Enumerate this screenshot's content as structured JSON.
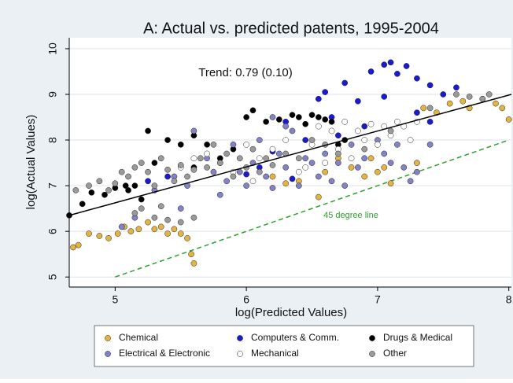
{
  "chart_data": {
    "type": "scatter",
    "title": "A: Actual vs. predicted patents, 1995-2004",
    "xlabel": "log(Predicted Values)",
    "ylabel": "log(Actual Values)",
    "xlim": [
      4.65,
      8.02
    ],
    "ylim": [
      4.78,
      10.24
    ],
    "xticks": [
      5,
      6,
      7,
      8
    ],
    "yticks": [
      5,
      6,
      7,
      8,
      9,
      10
    ],
    "grid": true,
    "trend_annotation": "Trend: 0.79 (0.10)",
    "trend_line": {
      "color": "#000000",
      "x": [
        4.65,
        8.02
      ],
      "y": [
        6.35,
        9.0
      ]
    },
    "diagonal_annotation": "45 degree line",
    "diagonal_line": {
      "color": "#2ea02e",
      "x": [
        5,
        8
      ],
      "y": [
        5,
        8
      ]
    },
    "series": [
      {
        "name": "Chemical",
        "color": "#e3b443",
        "x": [
          4.68,
          4.72,
          4.8,
          4.88,
          4.95,
          5.02,
          5.07,
          5.12,
          5.18,
          5.25,
          5.3,
          5.35,
          5.4,
          5.45,
          5.5,
          5.55,
          5.58,
          5.6,
          6.2,
          6.3,
          6.4,
          6.55,
          6.6,
          6.7,
          6.8,
          6.9,
          7.0,
          7.1,
          7.3,
          7.35,
          7.45,
          7.55,
          7.65,
          7.7,
          7.8,
          7.9,
          7.95,
          8.0,
          6.95,
          7.05
        ],
        "y": [
          5.65,
          5.7,
          5.95,
          5.9,
          5.85,
          5.95,
          6.1,
          6.0,
          6.05,
          6.2,
          6.05,
          6.1,
          5.95,
          6.05,
          5.95,
          5.85,
          5.5,
          5.3,
          7.2,
          7.05,
          7.1,
          6.75,
          7.3,
          7.6,
          7.4,
          7.2,
          7.3,
          7.05,
          7.5,
          8.7,
          8.6,
          8.8,
          8.85,
          8.7,
          8.9,
          8.8,
          8.7,
          8.45,
          7.6,
          7.4
        ]
      },
      {
        "name": "Computers & Comm.",
        "color": "#1a1ad0",
        "x": [
          6.55,
          6.6,
          6.65,
          6.75,
          6.85,
          6.95,
          7.05,
          7.1,
          7.15,
          7.22,
          7.3,
          7.4,
          7.5,
          7.6,
          7.05,
          6.2,
          6.3,
          6.35,
          6.45,
          6.7,
          6.9,
          5.25,
          5.4,
          6.0,
          6.1,
          7.3,
          7.4
        ],
        "y": [
          8.9,
          9.05,
          8.5,
          9.25,
          8.85,
          9.5,
          9.65,
          9.7,
          9.45,
          9.62,
          9.35,
          9.2,
          9.0,
          9.15,
          8.95,
          7.75,
          8.4,
          7.15,
          8.0,
          8.1,
          8.3,
          7.1,
          7.2,
          7.25,
          7.4,
          8.6,
          8.4
        ]
      },
      {
        "name": "Drugs & Medical",
        "color": "#000000",
        "x": [
          4.65,
          4.75,
          4.82,
          4.92,
          5.0,
          5.08,
          5.15,
          5.25,
          5.3,
          5.4,
          5.5,
          5.6,
          5.7,
          5.8,
          5.9,
          6.0,
          6.05,
          6.15,
          6.25,
          6.35,
          6.4,
          6.45,
          6.5,
          6.55,
          6.6,
          6.65,
          6.7,
          6.75,
          5.1,
          5.2,
          5.6
        ],
        "y": [
          6.35,
          6.6,
          6.85,
          6.8,
          6.95,
          7.0,
          7.0,
          8.2,
          7.5,
          8.0,
          7.9,
          8.1,
          7.9,
          7.6,
          7.8,
          8.5,
          8.65,
          8.4,
          8.45,
          8.55,
          8.5,
          8.35,
          8.55,
          8.5,
          8.45,
          8.4,
          7.9,
          8.0,
          6.9,
          6.7,
          7.4
        ]
      },
      {
        "name": "Electrical & Electronic",
        "color": "#8282c4",
        "x": [
          5.05,
          5.15,
          5.3,
          5.45,
          5.55,
          5.6,
          5.7,
          5.75,
          5.8,
          5.85,
          5.9,
          5.95,
          6.0,
          6.05,
          6.1,
          6.15,
          6.2,
          6.25,
          6.3,
          6.35,
          6.4,
          6.45,
          6.5,
          6.55,
          6.6,
          6.65,
          6.7,
          6.75,
          6.8,
          6.85,
          6.9,
          7.0,
          7.05,
          7.1,
          7.15,
          7.2,
          7.25,
          7.3,
          7.4,
          6.2,
          6.3,
          5.5
        ],
        "y": [
          6.1,
          6.3,
          6.9,
          7.2,
          7.0,
          8.2,
          7.6,
          7.3,
          6.8,
          7.1,
          7.9,
          7.3,
          7.0,
          7.5,
          8.0,
          7.2,
          6.95,
          7.7,
          7.4,
          8.2,
          7.0,
          7.6,
          7.5,
          7.2,
          7.7,
          7.1,
          7.5,
          7.0,
          7.9,
          7.4,
          7.6,
          8.0,
          7.7,
          7.5,
          7.9,
          7.4,
          7.1,
          7.3,
          7.9,
          8.5,
          8.3,
          6.5
        ]
      },
      {
        "name": "Mechanical",
        "color": "#ffffff",
        "x": [
          5.7,
          5.8,
          5.9,
          6.0,
          6.1,
          6.2,
          6.3,
          6.4,
          6.5,
          6.55,
          6.6,
          6.65,
          6.7,
          6.75,
          6.8,
          6.85,
          6.9,
          6.95,
          7.0,
          7.05,
          7.1,
          7.15,
          7.2,
          7.25,
          7.3,
          5.5,
          5.6,
          6.05,
          6.45
        ],
        "y": [
          7.7,
          7.5,
          7.3,
          7.9,
          7.6,
          7.8,
          8.0,
          7.3,
          7.9,
          8.3,
          7.5,
          8.2,
          7.8,
          8.4,
          7.6,
          8.2,
          8.0,
          8.35,
          7.9,
          8.3,
          8.1,
          8.4,
          8.3,
          8.0,
          8.4,
          7.4,
          7.6,
          7.1,
          7.4
        ]
      },
      {
        "name": "Other",
        "color": "#9a9a9a",
        "x": [
          4.7,
          4.8,
          4.88,
          4.95,
          5.0,
          5.05,
          5.1,
          5.15,
          5.2,
          5.25,
          5.3,
          5.35,
          5.4,
          5.45,
          5.5,
          5.55,
          5.6,
          5.65,
          5.7,
          5.75,
          5.8,
          5.85,
          5.9,
          5.95,
          6.0,
          6.05,
          6.1,
          6.15,
          6.2,
          6.3,
          6.4,
          6.5,
          6.6,
          6.7,
          6.9,
          7.1,
          7.4,
          7.6,
          7.7,
          7.8,
          7.85,
          5.2,
          5.3,
          5.4,
          5.5,
          5.35,
          5.6,
          5.15
        ],
        "y": [
          6.9,
          7.0,
          7.1,
          6.9,
          7.05,
          7.3,
          7.2,
          7.4,
          7.5,
          7.3,
          7.0,
          7.6,
          7.35,
          7.1,
          7.45,
          7.2,
          7.35,
          7.6,
          7.4,
          7.9,
          7.5,
          7.7,
          7.2,
          7.6,
          7.4,
          7.8,
          7.3,
          7.6,
          7.45,
          7.7,
          7.6,
          8.0,
          7.9,
          7.7,
          7.8,
          8.2,
          8.7,
          9.0,
          8.95,
          8.9,
          9.0,
          6.5,
          6.3,
          6.25,
          6.2,
          6.55,
          6.3,
          6.4
        ]
      }
    ]
  }
}
